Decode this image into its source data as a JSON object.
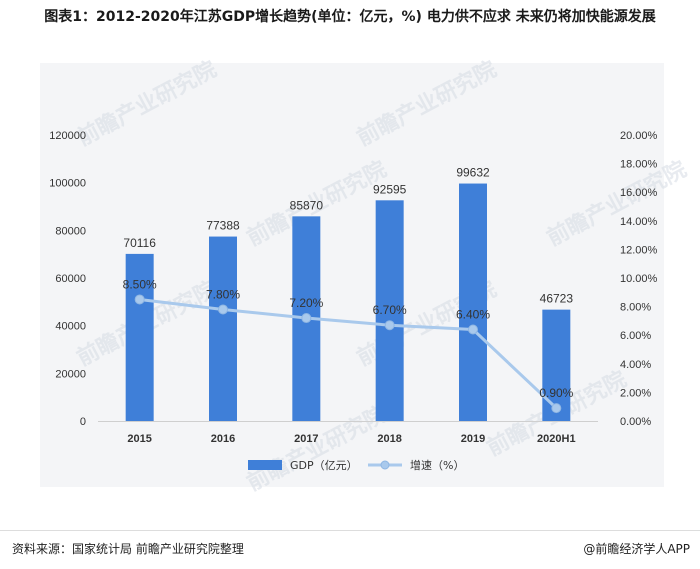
{
  "title": "图表1：2012-2020年江苏GDP增长趋势(单位：亿元，%) 电力供不应求 未来仍将加快能源发展",
  "footer": {
    "source": "资料来源：国家统计局  前瞻产业研究院整理",
    "brand": "@前瞻经济学人APP"
  },
  "watermark": "前瞻产业研究院",
  "colors": {
    "bar": "#3f7fd8",
    "line": "#a9c9ec",
    "marker": "#a9c9ec",
    "axis": "#cfcfcf",
    "text": "#333333"
  },
  "chart_data": {
    "type": "bar",
    "categories": [
      "2015",
      "2016",
      "2017",
      "2018",
      "2019",
      "2020H1"
    ],
    "series": [
      {
        "name": "GDP（亿元）",
        "type": "bar",
        "axis": "left",
        "values": [
          70116,
          77388,
          85870,
          92595,
          99632,
          46723
        ],
        "labels": [
          "70116",
          "77388",
          "85870",
          "92595",
          "99632",
          "46723"
        ]
      },
      {
        "name": "增速（%）",
        "type": "line",
        "axis": "right",
        "values": [
          8.5,
          7.8,
          7.2,
          6.7,
          6.4,
          0.9
        ],
        "labels": [
          "8.50%",
          "7.80%",
          "7.20%",
          "6.70%",
          "6.40%",
          "0.90%"
        ]
      }
    ],
    "y_left": {
      "min": 0,
      "max": 120000,
      "ticks": [
        "0",
        "20000",
        "40000",
        "60000",
        "80000",
        "100000",
        "120000"
      ]
    },
    "y_right": {
      "min": 0,
      "max": 20,
      "ticks": [
        "0.00%",
        "2.00%",
        "4.00%",
        "6.00%",
        "8.00%",
        "10.00%",
        "12.00%",
        "14.00%",
        "16.00%",
        "18.00%",
        "20.00%"
      ]
    },
    "grid": false,
    "legend": "bottom"
  }
}
